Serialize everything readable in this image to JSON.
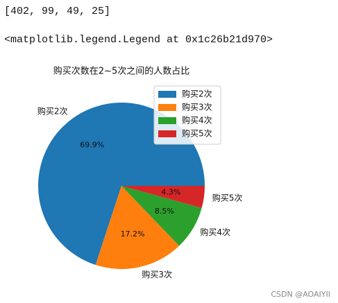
{
  "output_lines": [
    "[402, 99, 49, 25]",
    "<matplotlib.legend.Legend at 0x1c26b21d970>"
  ],
  "chart_data": {
    "type": "pie",
    "title": "购买次数在2~5次之间的人数占比",
    "categories": [
      "购买2次",
      "购买3次",
      "购买4次",
      "购买5次"
    ],
    "values": [
      69.9,
      17.2,
      8.5,
      4.3
    ],
    "value_labels": [
      "69.9%",
      "17.2%",
      "8.5%",
      "4.3%"
    ],
    "colors": [
      "#1f77b4",
      "#ff7f0e",
      "#2ca02c",
      "#d62728"
    ],
    "legend": "upper right"
  },
  "watermark": "CSDN @AOAIYII"
}
